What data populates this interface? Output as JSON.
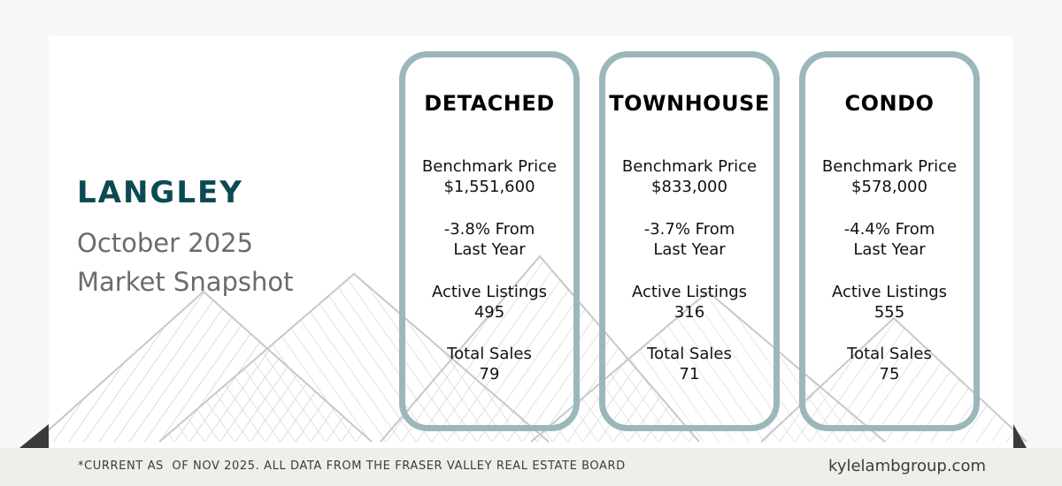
{
  "location": "LANGLEY",
  "subtitle": {
    "line1": "October 2025",
    "line2": "Market Snapshot"
  },
  "labels": {
    "benchmark": "Benchmark Price",
    "last_year": "Last Year",
    "active": "Active Listings",
    "sales": "Total Sales"
  },
  "cards": [
    {
      "title": "DETACHED",
      "benchmark_price": "$1,551,600",
      "change": "-3.8% From",
      "active_listings": "495",
      "total_sales": "79"
    },
    {
      "title": "TOWNHOUSE",
      "benchmark_price": "$833,000",
      "change": "-3.7% From",
      "active_listings": "316",
      "total_sales": "71"
    },
    {
      "title": "CONDO",
      "benchmark_price": "$578,000",
      "change": "-4.4% From",
      "active_listings": "555",
      "total_sales": "75"
    }
  ],
  "footer": {
    "disclaimer": "*CURRENT AS  OF NOV 2025. ALL DATA FROM THE FRASER VALLEY REAL ESTATE BOARD",
    "website": "kylelambgroup.com"
  },
  "colors": {
    "title_teal": "#0c4a52",
    "card_border": "#9bb7bb",
    "footer_bg": "#efeee8"
  }
}
